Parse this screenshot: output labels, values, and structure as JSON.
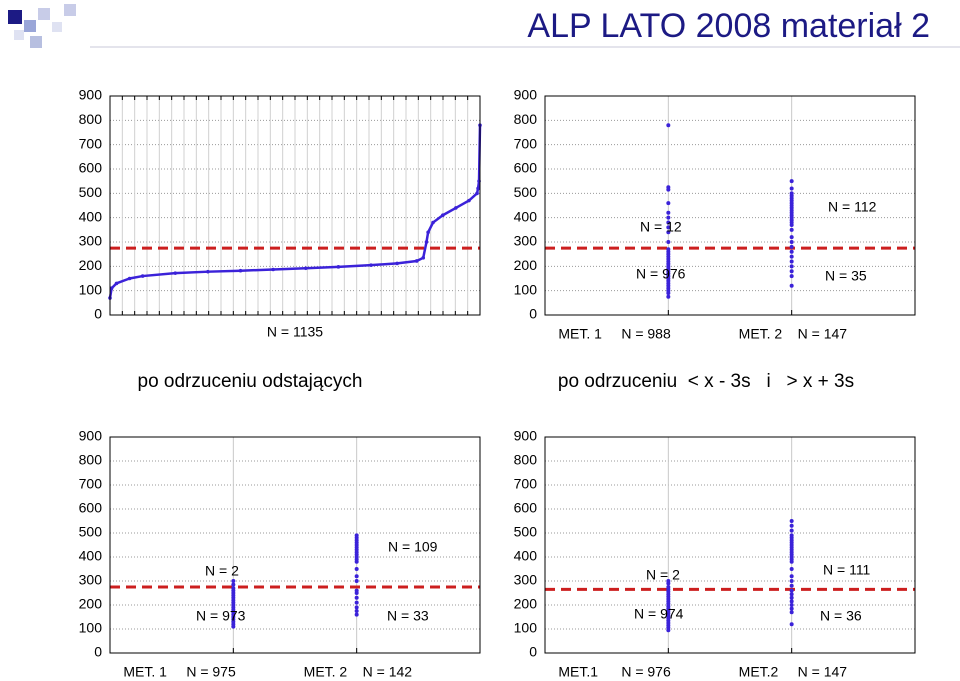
{
  "slide": {
    "title": "ALP LATO 2008 materiał 2",
    "captions": [
      "po odrzuceniu odstających",
      "po odrzuceniu  < x - 3s   i   > x + 3s"
    ]
  },
  "chart_data": [
    {
      "type": "line",
      "color": "#3b22d9",
      "x": [
        0,
        5,
        20,
        60,
        100,
        200,
        300,
        400,
        500,
        600,
        700,
        800,
        880,
        940,
        960,
        970,
        975,
        990,
        1020,
        1060,
        1100,
        1125,
        1128,
        1131,
        1134
      ],
      "values": [
        70,
        110,
        130,
        150,
        160,
        172,
        178,
        182,
        187,
        192,
        198,
        205,
        212,
        222,
        235,
        300,
        340,
        380,
        410,
        440,
        470,
        500,
        520,
        550,
        780
      ],
      "ylim": [
        0,
        900
      ],
      "yticks": [
        0,
        100,
        200,
        300,
        400,
        500,
        600,
        700,
        800,
        900
      ],
      "reference_line": 275,
      "reference_color": "#cc1f1f",
      "notes": [
        "N = 1135"
      ]
    },
    {
      "type": "strip",
      "color": "#3b22d9",
      "categories": [
        "MET. 1",
        "MET. 2"
      ],
      "category_notes": [
        "N = 988",
        "N = 147"
      ],
      "points": [
        [
          75,
          90,
          100,
          110,
          120,
          130,
          140,
          150,
          160,
          170,
          180,
          190,
          200,
          210,
          220,
          230,
          240,
          250,
          260,
          270,
          300,
          340,
          360,
          380,
          400,
          420,
          460,
          515,
          525,
          780
        ],
        [
          120,
          160,
          180,
          200,
          220,
          240,
          260,
          280,
          300,
          320,
          350,
          370,
          380,
          390,
          400,
          410,
          420,
          430,
          440,
          450,
          460,
          470,
          480,
          490,
          500,
          520,
          550
        ]
      ],
      "annotations": [
        "N = 12",
        "N = 976",
        "N = 112",
        "N = 35"
      ],
      "ylim": [
        0,
        900
      ],
      "yticks": [
        0,
        100,
        200,
        300,
        400,
        500,
        600,
        700,
        800,
        900
      ],
      "reference_line": 275,
      "reference_color": "#cc1f1f"
    },
    {
      "type": "strip",
      "color": "#3b22d9",
      "categories": [
        "MET. 1",
        "MET. 2"
      ],
      "category_notes": [
        "N = 975",
        "N = 142"
      ],
      "points": [
        [
          110,
          120,
          130,
          140,
          150,
          160,
          170,
          180,
          190,
          200,
          210,
          220,
          230,
          240,
          250,
          260,
          270,
          285,
          300
        ],
        [
          160,
          175,
          190,
          210,
          230,
          250,
          260,
          300,
          320,
          350,
          380,
          390,
          400,
          410,
          420,
          430,
          440,
          450,
          460,
          470,
          480,
          490
        ]
      ],
      "annotations": [
        "N = 2",
        "N = 973",
        "N = 109",
        "N = 33"
      ],
      "ylim": [
        0,
        900
      ],
      "yticks": [
        0,
        100,
        200,
        300,
        400,
        500,
        600,
        700,
        800,
        900
      ],
      "reference_line": 275,
      "reference_color": "#cc1f1f"
    },
    {
      "type": "strip",
      "color": "#3b22d9",
      "categories": [
        "MET.1",
        "MET.2"
      ],
      "category_notes": [
        "N = 976",
        "N = 147"
      ],
      "points": [
        [
          95,
          105,
          115,
          125,
          135,
          145,
          155,
          165,
          175,
          185,
          195,
          205,
          215,
          225,
          235,
          245,
          255,
          265,
          275,
          290,
          300
        ],
        [
          120,
          170,
          185,
          200,
          215,
          230,
          245,
          260,
          280,
          300,
          320,
          350,
          380,
          390,
          400,
          410,
          420,
          430,
          440,
          450,
          460,
          470,
          480,
          490,
          510,
          530,
          550
        ]
      ],
      "annotations": [
        "N = 2",
        "N = 974",
        "N = 111",
        "N = 36"
      ],
      "ylim": [
        0,
        900
      ],
      "yticks": [
        0,
        100,
        200,
        300,
        400,
        500,
        600,
        700,
        800,
        900
      ],
      "reference_line": 265,
      "reference_color": "#cc1f1f"
    }
  ]
}
